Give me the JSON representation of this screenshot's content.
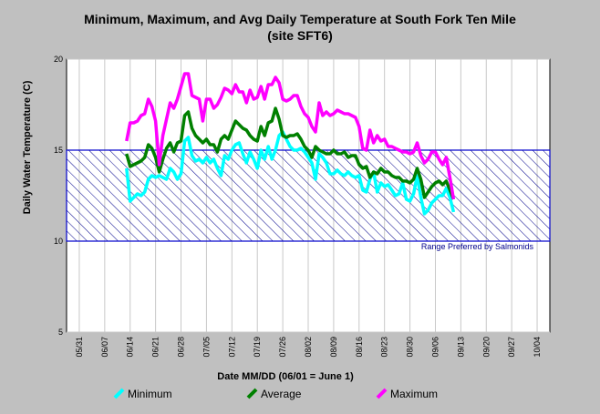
{
  "chart_data": {
    "type": "line",
    "title": "Minimum, Maximum, and Avg Daily Temperature at South Fork Ten Mile",
    "subtitle": "(site SFT6)",
    "xlabel": "Date MM/DD (06/01 = June 1)",
    "ylabel": "Daily Water Temperature (C)",
    "ylim": [
      5,
      20
    ],
    "yticks": [
      5,
      10,
      15,
      20
    ],
    "x_tick_labels": [
      "05/31",
      "06/07",
      "06/14",
      "06/21",
      "06/28",
      "07/05",
      "07/12",
      "07/19",
      "07/26",
      "08/02",
      "08/09",
      "08/16",
      "08/23",
      "08/30",
      "09/06",
      "09/13",
      "09/20",
      "09/27",
      "10/04"
    ],
    "x_start": "06/13",
    "grid": true,
    "legend_position": "bottom",
    "range_band": {
      "low": 10,
      "high": 15,
      "label": "Range Preferred by Salmonids"
    },
    "series": [
      {
        "name": "Minimum",
        "color": "#00ffff",
        "values": [
          14.0,
          12.2,
          12.4,
          12.6,
          12.5,
          12.7,
          13.4,
          13.6,
          13.5,
          13.6,
          13.5,
          13.4,
          14.0,
          13.8,
          13.4,
          13.7,
          15.5,
          15.7,
          14.7,
          14.4,
          14.5,
          14.3,
          14.6,
          14.3,
          14.5,
          14.0,
          13.6,
          14.7,
          14.5,
          15.0,
          15.3,
          15.4,
          14.8,
          14.3,
          14.9,
          14.5,
          14.0,
          15.0,
          14.5,
          15.2,
          14.5,
          15.0,
          15.8,
          16.0,
          15.6,
          15.2,
          15.0,
          15.0,
          15.1,
          14.9,
          14.6,
          14.3,
          13.4,
          14.8,
          14.6,
          14.3,
          13.7,
          13.7,
          13.9,
          13.7,
          13.6,
          13.8,
          13.6,
          13.5,
          13.6,
          12.8,
          12.7,
          13.4,
          13.8,
          12.7,
          13.2,
          13.0,
          13.1,
          12.8,
          12.5,
          12.6,
          13.2,
          12.3,
          12.2,
          12.6,
          13.6,
          12.4,
          11.5,
          11.7,
          12.1,
          12.3,
          12.5,
          12.5,
          12.9,
          12.4,
          11.6
        ]
      },
      {
        "name": "Average",
        "color": "#008000",
        "values": [
          14.8,
          14.1,
          14.2,
          14.3,
          14.4,
          14.6,
          15.3,
          15.1,
          14.6,
          13.8,
          14.5,
          15.1,
          15.4,
          14.9,
          15.4,
          15.5,
          16.9,
          17.1,
          16.2,
          15.8,
          15.6,
          15.4,
          15.6,
          15.3,
          15.3,
          14.9,
          15.6,
          15.8,
          15.6,
          16.1,
          16.6,
          16.4,
          16.2,
          16.1,
          15.8,
          15.6,
          15.5,
          16.3,
          15.8,
          16.5,
          16.6,
          17.3,
          16.7,
          15.8,
          15.7,
          15.8,
          15.8,
          15.9,
          15.6,
          15.2,
          15.0,
          14.6,
          15.2,
          15.0,
          14.9,
          14.8,
          14.8,
          15.0,
          14.8,
          14.8,
          14.9,
          14.6,
          14.7,
          14.7,
          14.2,
          14.0,
          14.1,
          13.5,
          13.8,
          13.7,
          14.0,
          13.8,
          13.8,
          13.6,
          13.5,
          13.5,
          13.3,
          13.3,
          13.2,
          13.4,
          14.0,
          13.4,
          12.4,
          12.7,
          13.0,
          13.2,
          13.3,
          13.1,
          13.3,
          12.8,
          12.3
        ]
      },
      {
        "name": "Maximum",
        "color": "#ff00ff",
        "values": [
          15.5,
          16.5,
          16.5,
          16.6,
          16.9,
          17.0,
          17.8,
          17.4,
          16.6,
          14.2,
          15.8,
          16.7,
          17.6,
          17.3,
          17.8,
          18.5,
          19.2,
          19.2,
          18.0,
          17.9,
          17.8,
          16.6,
          17.8,
          17.8,
          17.3,
          17.5,
          17.9,
          18.4,
          18.3,
          18.1,
          18.6,
          18.2,
          18.2,
          17.6,
          18.3,
          17.8,
          17.9,
          18.5,
          17.8,
          18.6,
          18.6,
          19.0,
          18.7,
          17.8,
          17.7,
          17.8,
          18.0,
          18.0,
          17.4,
          17.0,
          16.8,
          16.3,
          16.0,
          17.6,
          16.9,
          17.1,
          16.9,
          17.0,
          17.2,
          17.1,
          17.0,
          17.0,
          16.9,
          16.8,
          16.3,
          15.1,
          15.0,
          16.1,
          15.4,
          15.8,
          15.5,
          15.6,
          15.2,
          15.2,
          15.1,
          15.0,
          14.9,
          14.9,
          14.8,
          14.9,
          15.4,
          14.7,
          14.3,
          14.5,
          14.9,
          14.9,
          14.5,
          14.2,
          14.6,
          13.5,
          12.3
        ]
      }
    ]
  }
}
